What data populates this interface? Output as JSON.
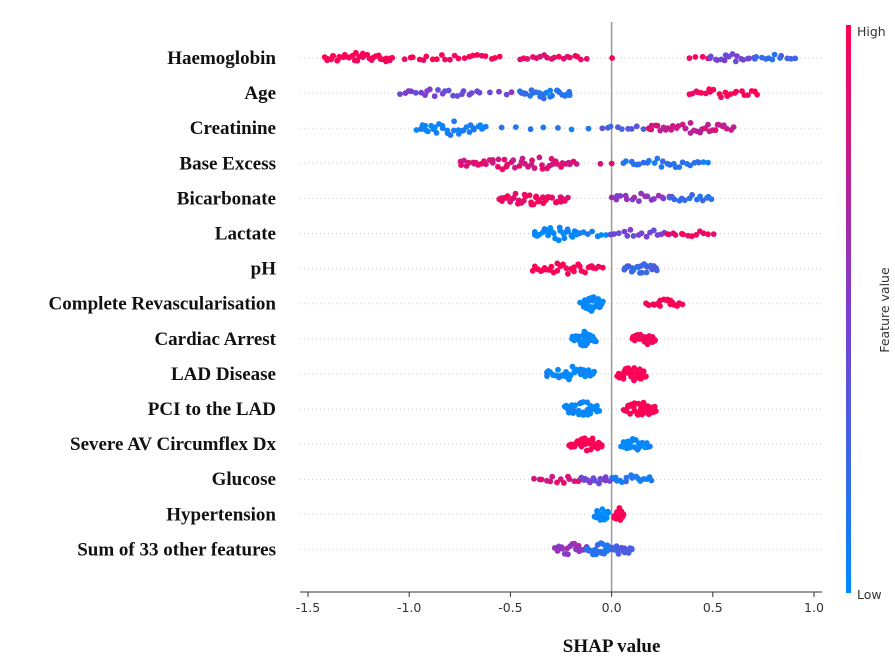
{
  "chart_data": {
    "type": "scatter",
    "subtype": "shap-beeswarm-summary",
    "xlabel": "SHAP value",
    "xlim": [
      -1.5,
      1.0
    ],
    "xticks": [
      "-1.5",
      "-1.0",
      "-0.5",
      "0.0",
      "0.5",
      "1.0"
    ],
    "tick_values": [
      -1.5,
      -1.0,
      -0.5,
      0.0,
      0.5,
      1.0
    ],
    "grid": false,
    "legend": {
      "type": "colorbar",
      "placement": "right",
      "high_label": "High",
      "low_label": "Low",
      "title": "Feature value",
      "high_color": "#ff0052",
      "low_color": "#008bfb"
    },
    "features": [
      {
        "name": "Haemoglobin",
        "clusters": [
          {
            "from": -1.42,
            "to": -1.08,
            "value": 1.0,
            "n": 36,
            "spread": 0.85
          },
          {
            "from": -1.02,
            "to": -0.55,
            "value": 0.95,
            "n": 22,
            "spread": 0.6
          },
          {
            "from": -0.45,
            "to": -0.13,
            "value": 0.9,
            "n": 18,
            "spread": 0.5
          },
          {
            "from": 0.0,
            "to": 0.0,
            "value": 1.0,
            "n": 1,
            "spread": 0.0
          },
          {
            "from": 0.38,
            "to": 0.48,
            "value": 0.9,
            "n": 4,
            "spread": 0.2
          },
          {
            "from": 0.48,
            "to": 0.7,
            "value": 0.45,
            "n": 16,
            "spread": 0.6
          },
          {
            "from": 0.7,
            "to": 0.9,
            "value": 0.2,
            "n": 12,
            "spread": 0.5
          }
        ]
      },
      {
        "name": "Age",
        "clusters": [
          {
            "from": -1.04,
            "to": -0.65,
            "value": 0.45,
            "n": 22,
            "spread": 0.6
          },
          {
            "from": -0.6,
            "to": -0.45,
            "value": 0.5,
            "n": 5,
            "spread": 0.3
          },
          {
            "from": -0.45,
            "to": -0.2,
            "value": 0.15,
            "n": 24,
            "spread": 0.8
          },
          {
            "from": 0.38,
            "to": 0.72,
            "value": 1.0,
            "n": 22,
            "spread": 0.7
          }
        ]
      },
      {
        "name": "Creatinine",
        "clusters": [
          {
            "from": -0.96,
            "to": -0.62,
            "value": 0.05,
            "n": 32,
            "spread": 0.9
          },
          {
            "from": -0.55,
            "to": -0.12,
            "value": 0.1,
            "n": 7,
            "spread": 0.3
          },
          {
            "from": -0.05,
            "to": 0.18,
            "value": 0.3,
            "n": 10,
            "spread": 0.4
          },
          {
            "from": 0.18,
            "to": 0.6,
            "value": 0.8,
            "n": 34,
            "spread": 0.8
          }
        ]
      },
      {
        "name": "Base Excess",
        "clusters": [
          {
            "from": -0.75,
            "to": -0.18,
            "value": 0.85,
            "n": 48,
            "spread": 1.0
          },
          {
            "from": -0.06,
            "to": 0.0,
            "value": 0.9,
            "n": 2,
            "spread": 0.2
          },
          {
            "from": 0.06,
            "to": 0.47,
            "value": 0.15,
            "n": 26,
            "spread": 0.7
          }
        ]
      },
      {
        "name": "Bicarbonate",
        "clusters": [
          {
            "from": -0.56,
            "to": -0.22,
            "value": 0.95,
            "n": 40,
            "spread": 1.0
          },
          {
            "from": 0.0,
            "to": 0.28,
            "value": 0.55,
            "n": 18,
            "spread": 0.7
          },
          {
            "from": 0.28,
            "to": 0.5,
            "value": 0.2,
            "n": 14,
            "spread": 0.5
          }
        ]
      },
      {
        "name": "Lactate",
        "clusters": [
          {
            "from": -0.38,
            "to": -0.16,
            "value": 0.0,
            "n": 30,
            "spread": 0.9
          },
          {
            "from": -0.16,
            "to": 0.0,
            "value": 0.05,
            "n": 8,
            "spread": 0.4
          },
          {
            "from": 0.0,
            "to": 0.28,
            "value": 0.45,
            "n": 16,
            "spread": 0.6
          },
          {
            "from": 0.28,
            "to": 0.5,
            "value": 0.95,
            "n": 12,
            "spread": 0.4
          }
        ]
      },
      {
        "name": "pH",
        "clusters": [
          {
            "from": -0.39,
            "to": -0.05,
            "value": 1.0,
            "n": 30,
            "spread": 0.8
          },
          {
            "from": 0.06,
            "to": 0.22,
            "value": 0.25,
            "n": 22,
            "spread": 0.7
          }
        ]
      },
      {
        "name": "Complete Revascularisation",
        "clusters": [
          {
            "from": -0.15,
            "to": -0.05,
            "value": 0.0,
            "n": 34,
            "spread": 1.0
          },
          {
            "from": 0.17,
            "to": 0.35,
            "value": 1.0,
            "n": 20,
            "spread": 0.6
          }
        ]
      },
      {
        "name": "Cardiac Arrest",
        "clusters": [
          {
            "from": -0.19,
            "to": -0.08,
            "value": 0.0,
            "n": 36,
            "spread": 1.0
          },
          {
            "from": 0.1,
            "to": 0.22,
            "value": 1.0,
            "n": 24,
            "spread": 0.8
          }
        ]
      },
      {
        "name": "LAD Disease",
        "clusters": [
          {
            "from": -0.32,
            "to": -0.09,
            "value": 0.0,
            "n": 34,
            "spread": 1.0
          },
          {
            "from": 0.03,
            "to": 0.17,
            "value": 1.0,
            "n": 36,
            "spread": 1.0
          }
        ]
      },
      {
        "name": "PCI to the LAD",
        "clusters": [
          {
            "from": -0.23,
            "to": -0.06,
            "value": 0.0,
            "n": 34,
            "spread": 1.0
          },
          {
            "from": 0.06,
            "to": 0.22,
            "value": 1.0,
            "n": 36,
            "spread": 1.0
          }
        ]
      },
      {
        "name": "Severe AV Circumflex Dx",
        "clusters": [
          {
            "from": -0.21,
            "to": -0.05,
            "value": 1.0,
            "n": 36,
            "spread": 1.0
          },
          {
            "from": 0.05,
            "to": 0.19,
            "value": 0.0,
            "n": 30,
            "spread": 0.9
          }
        ]
      },
      {
        "name": "Glucose",
        "clusters": [
          {
            "from": -0.38,
            "to": -0.15,
            "value": 0.85,
            "n": 14,
            "spread": 0.6
          },
          {
            "from": -0.15,
            "to": 0.0,
            "value": 0.45,
            "n": 14,
            "spread": 0.7
          },
          {
            "from": 0.0,
            "to": 0.2,
            "value": 0.1,
            "n": 16,
            "spread": 0.6
          }
        ]
      },
      {
        "name": "Hypertension",
        "clusters": [
          {
            "from": -0.08,
            "to": -0.02,
            "value": 0.0,
            "n": 22,
            "spread": 0.9
          },
          {
            "from": 0.01,
            "to": 0.06,
            "value": 1.0,
            "n": 22,
            "spread": 0.9
          }
        ]
      },
      {
        "name": "Sum of 33 other features",
        "clusters": [
          {
            "from": -0.28,
            "to": -0.12,
            "value": 0.6,
            "n": 20,
            "spread": 0.8
          },
          {
            "from": -0.12,
            "to": 0.0,
            "value": 0.15,
            "n": 24,
            "spread": 1.0
          },
          {
            "from": 0.0,
            "to": 0.1,
            "value": 0.3,
            "n": 16,
            "spread": 0.8
          }
        ]
      }
    ]
  }
}
